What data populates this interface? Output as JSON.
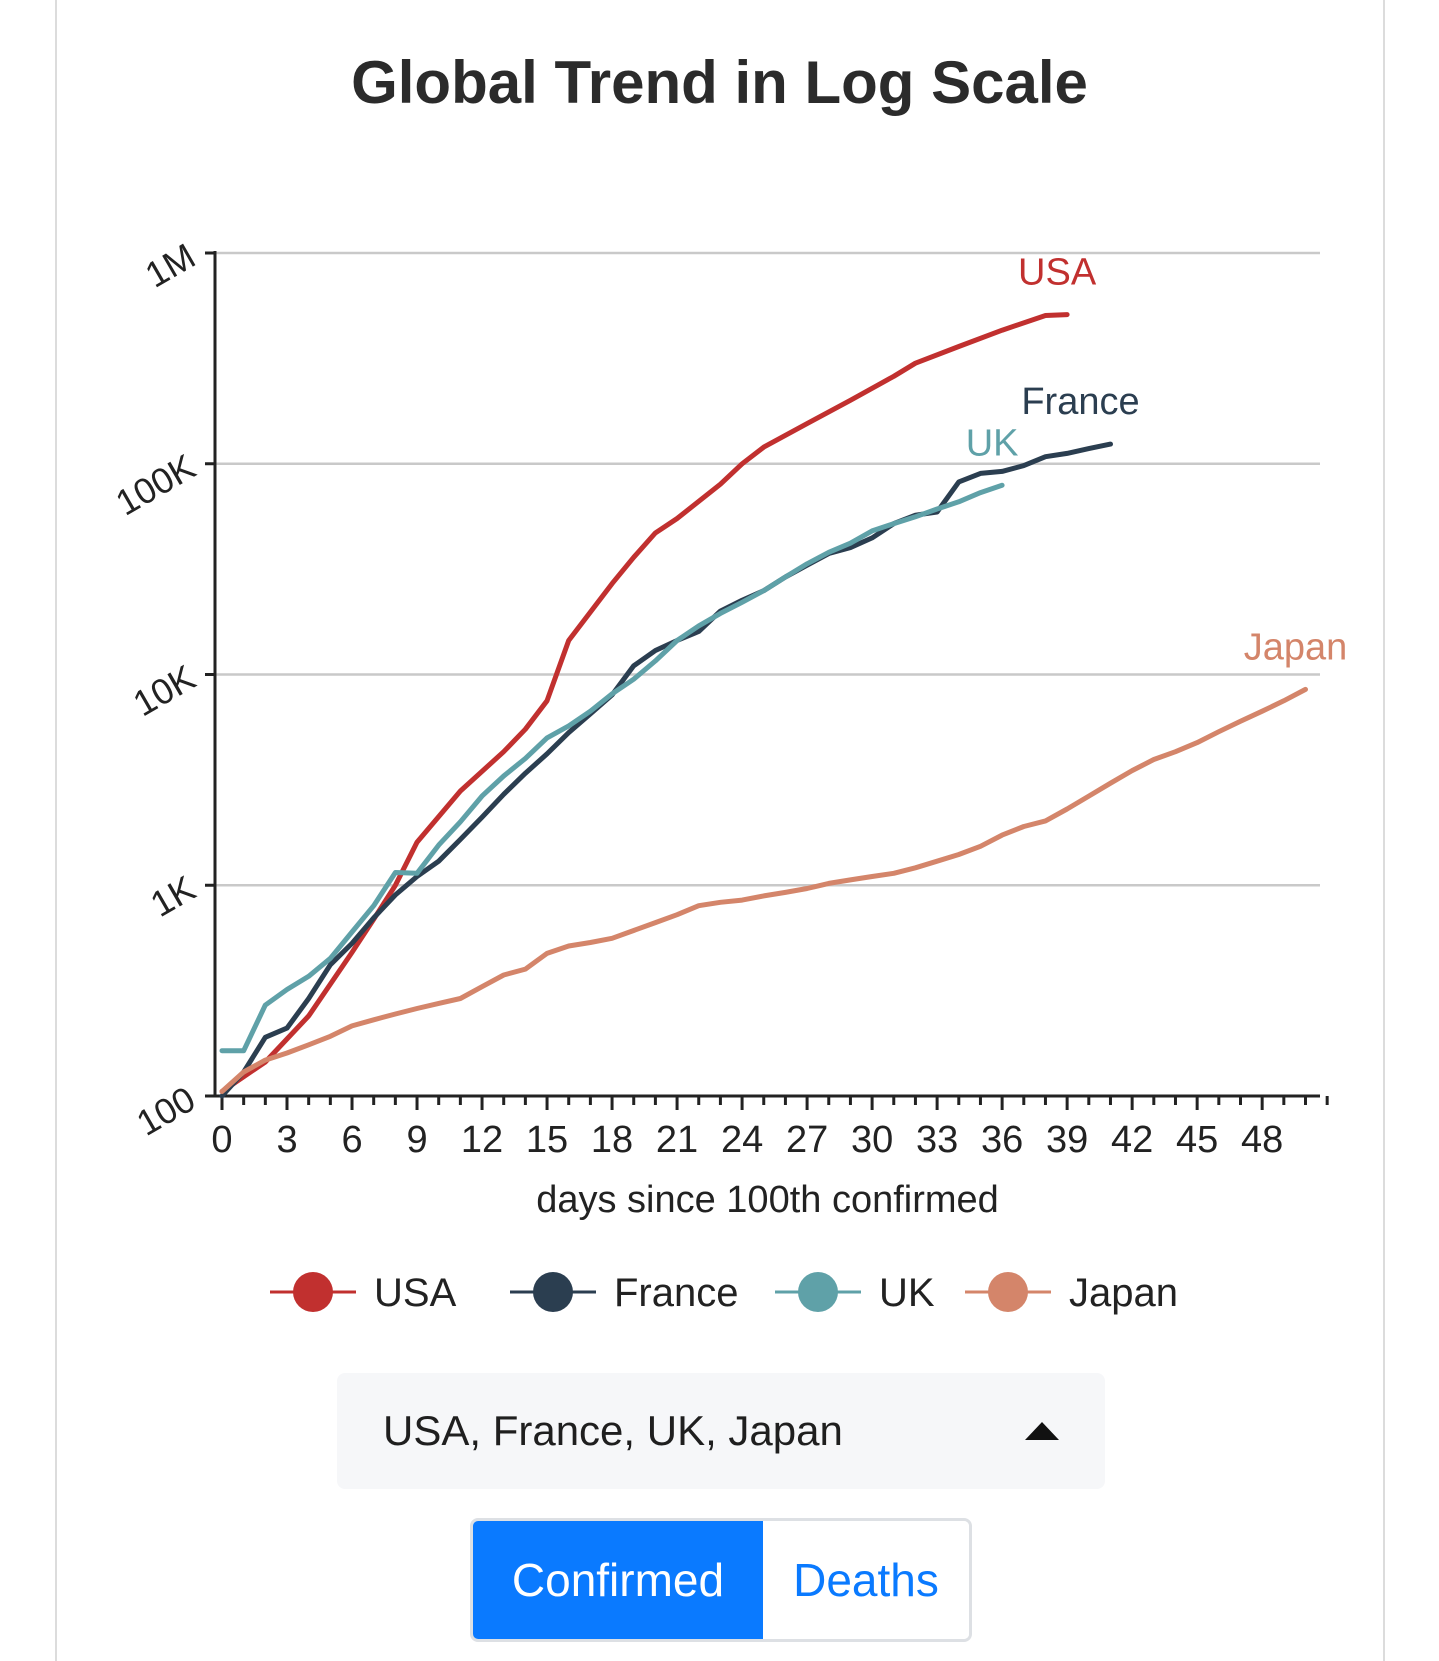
{
  "chart_data": {
    "type": "line",
    "title": "Global Trend in Log Scale",
    "xlabel": "days since 100th confirmed",
    "ylabel": "",
    "yscale": "log",
    "xlim": [
      0,
      51
    ],
    "ylim": [
      100,
      1000000
    ],
    "xticks": [
      0,
      3,
      6,
      9,
      12,
      15,
      18,
      21,
      24,
      27,
      30,
      33,
      36,
      39,
      42,
      45,
      48
    ],
    "yticks": [
      {
        "value": 100,
        "label": "100"
      },
      {
        "value": 1000,
        "label": "1K"
      },
      {
        "value": 10000,
        "label": "10K"
      },
      {
        "value": 100000,
        "label": "100K"
      },
      {
        "value": 1000000,
        "label": "1M"
      }
    ],
    "grid": "horizontal",
    "legend": "bottom",
    "series": [
      {
        "name": "USA",
        "color": "#c1302f",
        "x": [
          0,
          2,
          4,
          6,
          7,
          8,
          9,
          11,
          13,
          14,
          15,
          16,
          18,
          19,
          20,
          21,
          23,
          24,
          25,
          27,
          29,
          31,
          32,
          34,
          36,
          38,
          39
        ],
        "y": [
          105,
          145,
          240,
          480,
          690,
          1000,
          1600,
          2800,
          4300,
          5500,
          7500,
          14500,
          27000,
          36000,
          47000,
          55000,
          80000,
          100000,
          120000,
          155000,
          200000,
          260000,
          300000,
          360000,
          430000,
          505000,
          510000
        ]
      },
      {
        "name": "France",
        "color": "#2b3e50",
        "x": [
          0,
          1,
          2,
          3,
          4,
          5,
          6,
          7,
          8,
          9,
          10,
          11,
          12,
          13,
          14,
          15,
          16,
          17,
          18,
          19,
          20,
          21,
          22,
          23,
          24,
          25,
          26,
          27,
          28,
          29,
          30,
          31,
          32,
          33,
          34,
          35,
          36,
          37,
          38,
          39,
          40,
          41
        ],
        "y": [
          100,
          130,
          190,
          210,
          290,
          420,
          530,
          700,
          900,
          1100,
          1300,
          1650,
          2100,
          2700,
          3400,
          4200,
          5300,
          6500,
          8000,
          11000,
          13000,
          14500,
          16000,
          20000,
          22500,
          25000,
          29000,
          33000,
          37500,
          40000,
          44500,
          52000,
          57000,
          59000,
          82000,
          90000,
          92000,
          98000,
          108000,
          112000,
          118000,
          124000
        ]
      },
      {
        "name": "UK",
        "color": "#5fa1a8",
        "x": [
          0,
          1,
          2,
          3,
          4,
          5,
          6,
          7,
          8,
          9,
          10,
          11,
          12,
          13,
          14,
          15,
          16,
          17,
          18,
          19,
          20,
          21,
          22,
          23,
          24,
          25,
          26,
          27,
          28,
          29,
          30,
          31,
          32,
          33,
          34,
          35,
          36
        ],
        "y": [
          164,
          164,
          270,
          320,
          370,
          450,
          600,
          800,
          1150,
          1140,
          1550,
          2000,
          2650,
          3300,
          4000,
          5000,
          5700,
          6700,
          8100,
          9500,
          11600,
          14500,
          17000,
          19500,
          22000,
          25000,
          29000,
          33500,
          38000,
          42000,
          48000,
          52000,
          56000,
          61000,
          66000,
          73000,
          79000
        ]
      },
      {
        "name": "Japan",
        "color": "#d4856a",
        "x": [
          0,
          1,
          2,
          3,
          4,
          5,
          6,
          7,
          8,
          9,
          10,
          11,
          12,
          13,
          14,
          15,
          16,
          17,
          18,
          19,
          20,
          21,
          22,
          23,
          24,
          25,
          26,
          27,
          28,
          29,
          30,
          31,
          32,
          33,
          34,
          35,
          36,
          37,
          38,
          39,
          40,
          41,
          42,
          43,
          44,
          45,
          46,
          47,
          48,
          49,
          50
        ],
        "y": [
          105,
          130,
          148,
          160,
          175,
          192,
          215,
          230,
          245,
          260,
          275,
          290,
          330,
          375,
          400,
          475,
          515,
          535,
          560,
          610,
          665,
          725,
          800,
          830,
          850,
          890,
          925,
          965,
          1020,
          1060,
          1100,
          1140,
          1210,
          1300,
          1400,
          1530,
          1730,
          1900,
          2020,
          2300,
          2650,
          3050,
          3500,
          3950,
          4300,
          4750,
          5350,
          6000,
          6700,
          7500,
          8500
        ]
      }
    ]
  },
  "selector": {
    "value": "USA, France, UK, Japan"
  },
  "toggle": {
    "confirmed_label": "Confirmed",
    "deaths_label": "Deaths",
    "active": "Confirmed"
  }
}
